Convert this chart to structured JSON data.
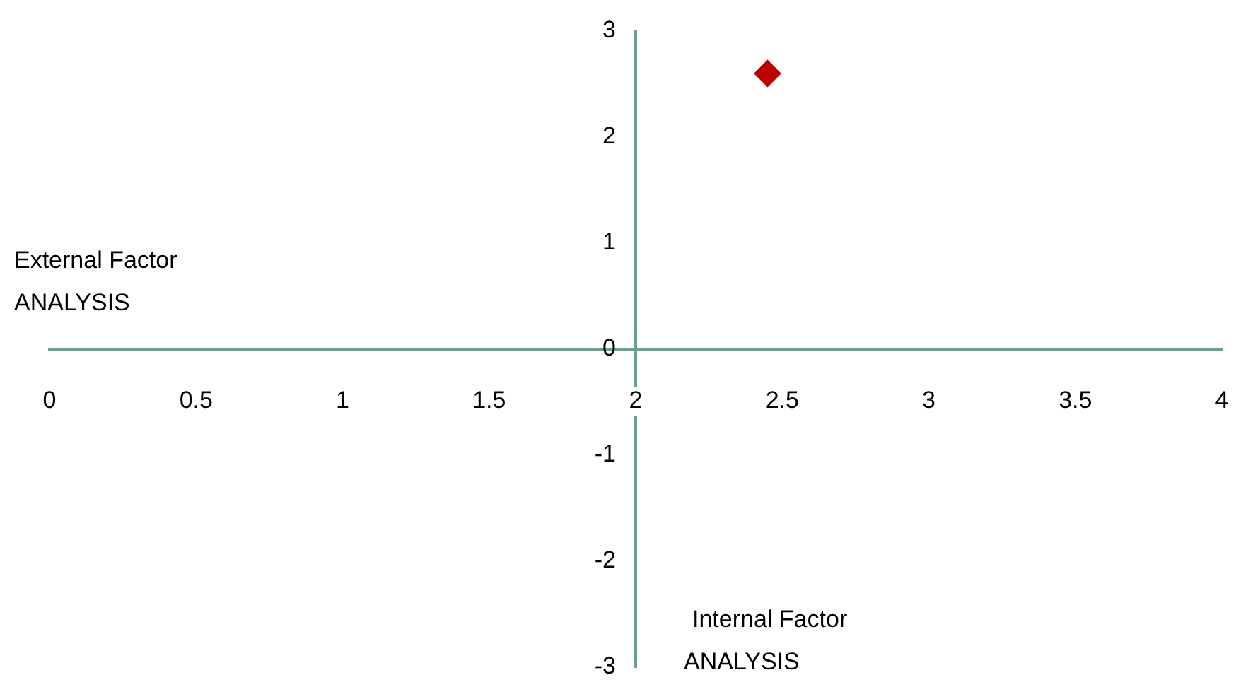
{
  "chart_data": {
    "type": "scatter",
    "xlabel": "External Factor\nANALYSIS",
    "ylabel": "Internal Factor\nANALYSIS",
    "x": [
      2.45
    ],
    "values": [
      2.6
    ],
    "color": "#c00000",
    "marker": "diamond",
    "xlim": [
      0,
      4
    ],
    "xticks": [
      0,
      0.5,
      1,
      1.5,
      2,
      2.5,
      3,
      3.5,
      4
    ],
    "ylim": [
      -3,
      3
    ],
    "yticks": [
      -3,
      -2,
      -1,
      0,
      1,
      2,
      3
    ],
    "grid": false,
    "legend": false
  }
}
